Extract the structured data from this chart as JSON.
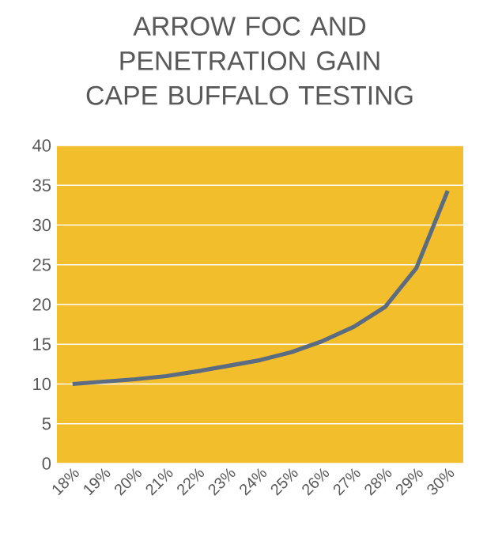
{
  "chart_data": {
    "type": "line",
    "title": "ARROW FOC AND PENETRATION GAIN CAPE BUFFALO TESTING",
    "categories": [
      "18%",
      "19%",
      "20%",
      "21%",
      "22%",
      "23%",
      "24%",
      "25%",
      "26%",
      "27%",
      "28%",
      "29%",
      "30%"
    ],
    "series": [
      {
        "color": "#5b6b82",
        "values": [
          10.0,
          10.3,
          10.6,
          11.0,
          11.6,
          12.3,
          13.0,
          14.0,
          15.4,
          17.2,
          19.7,
          24.6,
          34.3
        ]
      }
    ],
    "ylim": [
      0,
      40
    ],
    "yticks": [
      0,
      5,
      10,
      15,
      20,
      25,
      30,
      35,
      40
    ],
    "grid": "y",
    "marker": "none",
    "line_style": "solid"
  }
}
